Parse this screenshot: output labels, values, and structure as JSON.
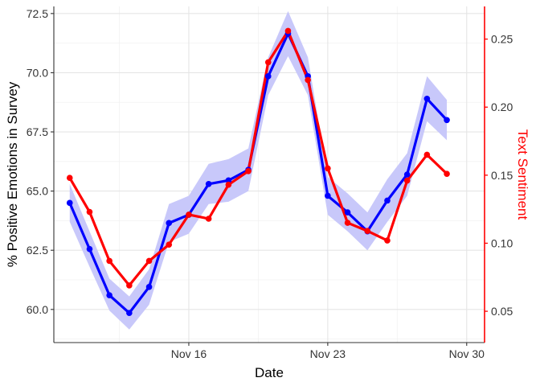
{
  "chart_data": {
    "type": "line",
    "xlabel": "Date",
    "ylabel": "% Positive Emotions in Survey",
    "y2label": "Text Sentiment",
    "x_tick_labels": [
      {
        "day": 16,
        "label": "Nov 16"
      },
      {
        "day": 23,
        "label": "Nov 23"
      },
      {
        "day": 30,
        "label": "Nov 30"
      }
    ],
    "xlim": [
      9.2,
      30.9
    ],
    "ylim": [
      58.6,
      72.8
    ],
    "y2lim": [
      0.027,
      0.274
    ],
    "yticks": [
      "60.0",
      "62.5",
      "65.0",
      "67.5",
      "70.0",
      "72.5"
    ],
    "y2ticks": [
      "0.05",
      "0.10",
      "0.15",
      "0.20",
      "0.25"
    ],
    "grid": true,
    "series": [
      {
        "axis": "left",
        "color": "#0000ff",
        "band_color": "#c8c8fa",
        "x": [
          10,
          11,
          12,
          13,
          14,
          15,
          16,
          17,
          18,
          19,
          20,
          21,
          22,
          23,
          24,
          25,
          26,
          27,
          28,
          29,
          30
        ],
        "values": [
          64.5,
          62.55,
          60.6,
          59.85,
          60.95,
          63.65,
          64.0,
          65.3,
          65.45,
          65.9,
          69.85,
          71.65,
          69.85,
          64.8,
          64.1,
          63.3,
          64.6,
          65.7,
          68.9,
          68.0,
          null
        ],
        "lower": [
          63.7,
          61.8,
          59.95,
          59.15,
          60.2,
          62.85,
          63.2,
          64.45,
          64.55,
          65.0,
          69.05,
          70.7,
          69.05,
          64.0,
          63.3,
          62.5,
          63.7,
          64.8,
          67.95,
          67.15,
          null
        ],
        "upper": [
          65.3,
          63.3,
          61.3,
          60.55,
          61.7,
          64.45,
          64.8,
          66.15,
          66.35,
          66.8,
          70.65,
          72.6,
          70.65,
          65.6,
          64.9,
          64.1,
          65.5,
          66.6,
          69.85,
          68.85,
          null
        ]
      },
      {
        "axis": "right",
        "color": "#ff0000",
        "x": [
          10,
          11,
          12,
          13,
          14,
          15,
          16,
          17,
          18,
          19,
          20,
          21,
          22,
          23,
          24,
          25,
          26,
          27,
          28,
          29,
          30
        ],
        "values": [
          0.148,
          0.123,
          0.087,
          0.069,
          0.087,
          0.099,
          0.121,
          0.118,
          0.143,
          0.153,
          0.233,
          0.256,
          0.22,
          0.155,
          0.115,
          0.109,
          0.102,
          0.146,
          0.165,
          0.151,
          null
        ]
      }
    ]
  }
}
